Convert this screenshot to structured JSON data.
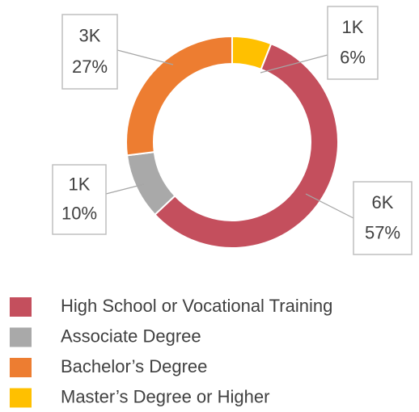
{
  "chart_data": {
    "type": "donut",
    "categories": [
      "High School or Vocational Training",
      "Associate Degree",
      "Bachelor’s Degree",
      "Master’s Degree or Higher"
    ],
    "values": [
      57,
      10,
      27,
      6
    ],
    "value_labels": [
      "57%",
      "10%",
      "27%",
      "6%"
    ],
    "counts": [
      6000,
      1000,
      3000,
      1000
    ],
    "count_labels": [
      "6K",
      "1K",
      "3K",
      "1K"
    ],
    "colors": [
      "#c44f5d",
      "#a9a9a9",
      "#ed7d31",
      "#ffc000"
    ],
    "legend": "bottom"
  }
}
